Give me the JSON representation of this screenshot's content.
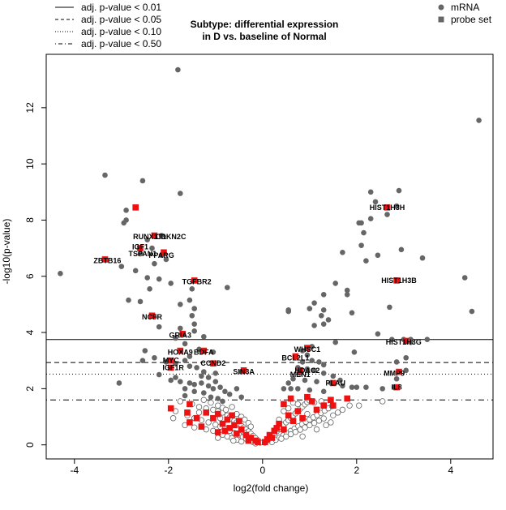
{
  "chart_data": {
    "type": "scatter",
    "title_line1": "Subtype: differential expression",
    "title_line2": "in D vs. baseline of Normal",
    "xlabel": "log2(fold change)",
    "ylabel": "-log10(p-value)",
    "xlim": [
      -4.6,
      4.9
    ],
    "ylim": [
      -0.5,
      13.9
    ],
    "x_ticks": [
      -4,
      -2,
      0,
      2,
      4
    ],
    "y_ticks": [
      0,
      2,
      4,
      6,
      8,
      10,
      12
    ],
    "grid": false,
    "threshold_legend": {
      "position": "top-left",
      "entries": [
        {
          "label": "adj. p-value < 0.01",
          "line_style": "solid",
          "y_value": 3.75
        },
        {
          "label": "adj. p-value < 0.05",
          "line_style": "dashed",
          "y_value": 2.93
        },
        {
          "label": "adj. p-value < 0.10",
          "line_style": "dotted",
          "y_value": 2.52
        },
        {
          "label": "adj. p-value < 0.50",
          "line_style": "dotdash",
          "y_value": 1.6
        }
      ]
    },
    "marker_legend": {
      "position": "top-right",
      "entries": [
        {
          "label": "mRNA",
          "marker": "circle",
          "color": "#666666"
        },
        {
          "label": "probe set",
          "marker": "square",
          "color": "#666666"
        }
      ]
    },
    "colors": {
      "significant_mrna": "#666666",
      "nonsignificant_mrna_stroke": "#666666",
      "probe_set": "#ee1111"
    },
    "significant_mrna_points": [
      [
        -1.8,
        13.35
      ],
      [
        -3.35,
        9.6
      ],
      [
        -2.55,
        9.4
      ],
      [
        -1.75,
        8.95
      ],
      [
        -2.9,
        8.35
      ],
      [
        -2.9,
        8.0
      ],
      [
        -2.95,
        7.9
      ],
      [
        -2.15,
        7.45
      ],
      [
        -2.45,
        7.3
      ],
      [
        -2.35,
        7.0
      ],
      [
        -2.6,
        6.8
      ],
      [
        -2.15,
        6.75
      ],
      [
        -2.05,
        6.6
      ],
      [
        -2.3,
        6.45
      ],
      [
        -4.3,
        6.1
      ],
      [
        -3.0,
        6.35
      ],
      [
        -2.7,
        6.2
      ],
      [
        -2.45,
        5.95
      ],
      [
        -2.2,
        5.9
      ],
      [
        -1.95,
        5.75
      ],
      [
        -2.85,
        5.15
      ],
      [
        -2.6,
        5.1
      ],
      [
        -2.4,
        5.55
      ],
      [
        -1.5,
        5.55
      ],
      [
        -0.75,
        5.6
      ],
      [
        -1.55,
        5.15
      ],
      [
        -1.75,
        5.0
      ],
      [
        -2.3,
        4.55
      ],
      [
        -1.45,
        4.85
      ],
      [
        -1.5,
        4.6
      ],
      [
        -1.45,
        4.3
      ],
      [
        -2.2,
        4.2
      ],
      [
        -1.75,
        4.15
      ],
      [
        -1.45,
        4.05
      ],
      [
        -1.85,
        3.8
      ],
      [
        -1.65,
        3.6
      ],
      [
        -1.25,
        3.85
      ],
      [
        -1.35,
        3.4
      ],
      [
        -1.05,
        3.3
      ],
      [
        -1.55,
        3.15
      ],
      [
        -1.65,
        3.0
      ],
      [
        -2.05,
        2.95
      ],
      [
        -2.55,
        3.0
      ],
      [
        -1.85,
        2.9
      ],
      [
        -1.55,
        2.8
      ],
      [
        -1.4,
        2.75
      ],
      [
        -1.25,
        2.6
      ],
      [
        -1.0,
        2.55
      ],
      [
        -1.15,
        2.4
      ],
      [
        -1.85,
        2.4
      ],
      [
        -2.2,
        2.5
      ],
      [
        -1.95,
        2.3
      ],
      [
        -1.75,
        2.25
      ],
      [
        -1.55,
        2.2
      ],
      [
        -1.45,
        2.15
      ],
      [
        -1.3,
        2.2
      ],
      [
        -1.15,
        2.1
      ],
      [
        -1.05,
        2.0
      ],
      [
        -0.9,
        2.05
      ],
      [
        -0.8,
        1.9
      ],
      [
        -0.7,
        1.8
      ],
      [
        -0.55,
        2.0
      ],
      [
        -0.45,
        1.7
      ],
      [
        -1.65,
        2.0
      ],
      [
        -1.45,
        1.9
      ],
      [
        -1.25,
        1.85
      ],
      [
        -1.1,
        1.7
      ],
      [
        -0.95,
        1.65
      ],
      [
        -0.85,
        1.55
      ],
      [
        -2.5,
        3.35
      ],
      [
        -2.3,
        3.1
      ],
      [
        -0.45,
        2.6
      ],
      [
        -3.05,
        2.2
      ],
      [
        -1.65,
        1.75
      ],
      [
        -1.3,
        2.45
      ],
      [
        -1.0,
        2.25
      ],
      [
        4.6,
        11.55
      ],
      [
        2.3,
        9.0
      ],
      [
        2.9,
        9.05
      ],
      [
        2.4,
        8.65
      ],
      [
        2.85,
        8.5
      ],
      [
        2.65,
        8.2
      ],
      [
        2.3,
        8.05
      ],
      [
        2.05,
        7.9
      ],
      [
        2.1,
        7.9
      ],
      [
        2.15,
        7.55
      ],
      [
        2.1,
        7.1
      ],
      [
        1.7,
        6.85
      ],
      [
        2.2,
        6.55
      ],
      [
        2.45,
        6.75
      ],
      [
        2.95,
        6.95
      ],
      [
        3.4,
        6.65
      ],
      [
        4.3,
        5.95
      ],
      [
        1.3,
        5.35
      ],
      [
        1.1,
        5.05
      ],
      [
        1.0,
        4.85
      ],
      [
        1.3,
        4.8
      ],
      [
        1.25,
        4.6
      ],
      [
        1.4,
        4.45
      ],
      [
        1.1,
        4.25
      ],
      [
        0.55,
        4.8
      ],
      [
        0.55,
        4.75
      ],
      [
        1.55,
        5.75
      ],
      [
        1.8,
        5.5
      ],
      [
        1.8,
        5.35
      ],
      [
        1.9,
        4.7
      ],
      [
        2.7,
        4.9
      ],
      [
        4.45,
        4.75
      ],
      [
        1.3,
        4.3
      ],
      [
        1.55,
        3.65
      ],
      [
        1.95,
        3.3
      ],
      [
        2.45,
        3.95
      ],
      [
        2.75,
        3.75
      ],
      [
        3.0,
        3.75
      ],
      [
        3.15,
        3.75
      ],
      [
        3.5,
        3.75
      ],
      [
        3.15,
        3.65
      ],
      [
        1.05,
        3.5
      ],
      [
        0.85,
        3.35
      ],
      [
        0.95,
        3.2
      ],
      [
        1.05,
        3.0
      ],
      [
        1.2,
        2.95
      ],
      [
        1.3,
        2.85
      ],
      [
        0.85,
        2.95
      ],
      [
        0.75,
        2.75
      ],
      [
        0.95,
        2.7
      ],
      [
        1.1,
        2.65
      ],
      [
        1.3,
        2.55
      ],
      [
        1.5,
        2.45
      ],
      [
        0.8,
        2.55
      ],
      [
        0.65,
        2.35
      ],
      [
        0.9,
        2.3
      ],
      [
        1.15,
        2.25
      ],
      [
        1.45,
        2.2
      ],
      [
        1.7,
        2.1
      ],
      [
        0.6,
        2.0
      ],
      [
        0.75,
        2.0
      ],
      [
        1.0,
        1.95
      ],
      [
        1.3,
        1.9
      ],
      [
        1.65,
        2.3
      ],
      [
        1.9,
        2.05
      ],
      [
        2.0,
        2.05
      ],
      [
        2.2,
        2.05
      ],
      [
        2.55,
        2.0
      ],
      [
        2.8,
        2.05
      ],
      [
        3.05,
        3.1
      ],
      [
        2.85,
        2.95
      ],
      [
        3.05,
        2.65
      ],
      [
        2.85,
        2.35
      ],
      [
        0.55,
        2.2
      ],
      [
        0.45,
        2.0
      ]
    ],
    "nonsignificant_mrna_points": [
      [
        -1.75,
        1.55
      ],
      [
        -1.5,
        1.45
      ],
      [
        -1.35,
        1.35
      ],
      [
        -1.2,
        1.3
      ],
      [
        -1.05,
        1.25
      ],
      [
        -0.95,
        1.2
      ],
      [
        -0.85,
        1.15
      ],
      [
        -0.75,
        1.05
      ],
      [
        -0.7,
        0.98
      ],
      [
        -0.65,
        0.92
      ],
      [
        -0.6,
        0.86
      ],
      [
        -0.55,
        0.8
      ],
      [
        -0.5,
        0.74
      ],
      [
        -0.45,
        0.68
      ],
      [
        -0.4,
        0.62
      ],
      [
        -0.35,
        0.55
      ],
      [
        -0.3,
        0.48
      ],
      [
        -0.25,
        0.4
      ],
      [
        -0.2,
        0.32
      ],
      [
        -0.15,
        0.24
      ],
      [
        -0.1,
        0.16
      ],
      [
        -0.05,
        0.08
      ],
      [
        -1.6,
        1.05
      ],
      [
        -1.45,
        0.95
      ],
      [
        -1.3,
        0.88
      ],
      [
        -1.15,
        0.8
      ],
      [
        -1.0,
        0.72
      ],
      [
        -0.9,
        0.65
      ],
      [
        -0.8,
        0.58
      ],
      [
        -0.7,
        0.5
      ],
      [
        -0.6,
        0.42
      ],
      [
        -0.5,
        0.35
      ],
      [
        -0.42,
        0.28
      ],
      [
        -0.35,
        0.22
      ],
      [
        -0.28,
        0.16
      ],
      [
        -0.2,
        0.1
      ],
      [
        -1.2,
        0.55
      ],
      [
        -1.05,
        0.5
      ],
      [
        -0.95,
        0.42
      ],
      [
        -0.85,
        0.36
      ],
      [
        -0.75,
        0.3
      ],
      [
        -0.65,
        0.24
      ],
      [
        -0.55,
        0.18
      ],
      [
        -0.45,
        0.12
      ],
      [
        -1.65,
        0.7
      ],
      [
        -1.45,
        0.62
      ],
      [
        -1.9,
        0.95
      ],
      [
        -1.85,
        1.2
      ],
      [
        -1.25,
        1.6
      ],
      [
        -1.1,
        1.5
      ],
      [
        -0.95,
        1.4
      ],
      [
        -0.85,
        1.32
      ],
      [
        -0.78,
        1.25
      ],
      [
        -0.55,
        1.1
      ],
      [
        -0.45,
        1.0
      ],
      [
        -0.38,
        0.9
      ],
      [
        -0.3,
        0.78
      ],
      [
        -0.25,
        0.65
      ],
      [
        -0.65,
        1.35
      ],
      [
        -0.9,
        0.95
      ],
      [
        -1.35,
        1.15
      ],
      [
        -0.62,
        0.15
      ],
      [
        -0.38,
        0.42
      ],
      [
        -0.15,
        0.05
      ],
      [
        -0.95,
        0.25
      ],
      [
        0.05,
        0.08
      ],
      [
        0.1,
        0.16
      ],
      [
        0.15,
        0.24
      ],
      [
        0.2,
        0.32
      ],
      [
        0.25,
        0.4
      ],
      [
        0.3,
        0.48
      ],
      [
        0.35,
        0.56
      ],
      [
        0.4,
        0.64
      ],
      [
        0.45,
        0.72
      ],
      [
        0.5,
        0.8
      ],
      [
        0.55,
        0.88
      ],
      [
        0.6,
        0.96
      ],
      [
        0.65,
        1.04
      ],
      [
        0.7,
        1.12
      ],
      [
        0.75,
        1.2
      ],
      [
        0.8,
        1.28
      ],
      [
        0.85,
        1.36
      ],
      [
        0.9,
        1.44
      ],
      [
        0.95,
        1.52
      ],
      [
        1.0,
        1.58
      ],
      [
        0.2,
        0.1
      ],
      [
        0.28,
        0.18
      ],
      [
        0.36,
        0.26
      ],
      [
        0.44,
        0.34
      ],
      [
        0.52,
        0.42
      ],
      [
        0.6,
        0.5
      ],
      [
        0.68,
        0.58
      ],
      [
        0.76,
        0.66
      ],
      [
        0.84,
        0.74
      ],
      [
        0.92,
        0.82
      ],
      [
        1.0,
        0.9
      ],
      [
        1.08,
        0.98
      ],
      [
        1.16,
        1.06
      ],
      [
        1.24,
        1.14
      ],
      [
        1.32,
        1.22
      ],
      [
        1.4,
        1.3
      ],
      [
        1.48,
        1.38
      ],
      [
        0.4,
        0.22
      ],
      [
        0.5,
        0.3
      ],
      [
        0.6,
        0.38
      ],
      [
        0.7,
        0.46
      ],
      [
        0.8,
        0.54
      ],
      [
        0.9,
        0.62
      ],
      [
        1.0,
        0.7
      ],
      [
        1.1,
        0.78
      ],
      [
        1.2,
        0.86
      ],
      [
        1.3,
        0.94
      ],
      [
        1.5,
        1.05
      ],
      [
        1.6,
        1.15
      ],
      [
        1.7,
        1.25
      ],
      [
        1.85,
        1.4
      ],
      [
        0.65,
        1.5
      ],
      [
        0.75,
        1.45
      ],
      [
        1.1,
        1.5
      ],
      [
        1.25,
        1.55
      ],
      [
        0.45,
        1.2
      ],
      [
        0.55,
        1.3
      ],
      [
        1.35,
        0.7
      ],
      [
        1.45,
        0.8
      ],
      [
        2.05,
        1.4
      ],
      [
        2.55,
        1.55
      ],
      [
        1.15,
        0.55
      ],
      [
        0.85,
        0.3
      ],
      [
        0.35,
        0.9
      ],
      [
        0.95,
        1.1
      ]
    ],
    "probe_set_points": [
      [
        -2.7,
        8.45
      ],
      [
        -2.3,
        7.45
      ],
      [
        -2.6,
        7.0
      ],
      [
        -2.1,
        6.85
      ],
      [
        -3.35,
        6.6
      ],
      [
        -1.45,
        5.85
      ],
      [
        -2.35,
        4.6
      ],
      [
        -1.7,
        3.95
      ],
      [
        -1.75,
        3.35
      ],
      [
        -1.25,
        3.35
      ],
      [
        -1.95,
        3.0
      ],
      [
        -1.05,
        2.9
      ],
      [
        -1.95,
        2.75
      ],
      [
        -0.4,
        2.65
      ],
      [
        -1.55,
        1.45
      ],
      [
        -1.95,
        1.3
      ],
      [
        -1.6,
        1.15
      ],
      [
        -1.2,
        1.15
      ],
      [
        -0.95,
        1.1
      ],
      [
        -0.65,
        1.05
      ],
      [
        -1.05,
        0.95
      ],
      [
        -0.75,
        0.9
      ],
      [
        -1.4,
        0.95
      ],
      [
        -0.5,
        0.85
      ],
      [
        -0.85,
        0.75
      ],
      [
        -0.6,
        0.7
      ],
      [
        -1.55,
        0.8
      ],
      [
        -1.3,
        0.65
      ],
      [
        -0.7,
        0.6
      ],
      [
        -0.45,
        0.55
      ],
      [
        -0.95,
        0.45
      ],
      [
        -0.55,
        0.4
      ],
      [
        -0.35,
        0.35
      ],
      [
        -0.25,
        0.25
      ],
      [
        -0.15,
        0.15
      ],
      [
        -0.1,
        0.1
      ],
      [
        -0.8,
        0.5
      ],
      [
        -0.3,
        0.15
      ],
      [
        2.65,
        8.45
      ],
      [
        2.85,
        5.85
      ],
      [
        3.05,
        3.7
      ],
      [
        0.95,
        3.45
      ],
      [
        0.7,
        3.15
      ],
      [
        0.8,
        2.65
      ],
      [
        2.9,
        2.6
      ],
      [
        2.85,
        2.05
      ],
      [
        1.5,
        2.2
      ],
      [
        0.6,
        1.65
      ],
      [
        0.95,
        1.7
      ],
      [
        1.45,
        1.6
      ],
      [
        1.8,
        1.65
      ],
      [
        1.5,
        1.4
      ],
      [
        1.05,
        1.55
      ],
      [
        1.3,
        1.4
      ],
      [
        0.45,
        1.45
      ],
      [
        0.75,
        1.2
      ],
      [
        0.55,
        1.05
      ],
      [
        0.35,
        0.75
      ],
      [
        0.65,
        0.85
      ],
      [
        0.85,
        0.95
      ],
      [
        0.15,
        0.35
      ],
      [
        0.25,
        0.5
      ],
      [
        0.05,
        0.1
      ],
      [
        0.1,
        0.2
      ],
      [
        0.3,
        0.6
      ],
      [
        0.45,
        0.55
      ],
      [
        1.15,
        1.25
      ],
      [
        0.2,
        0.25
      ]
    ],
    "gene_labels": [
      {
        "text": "HIST1H3H",
        "x": 2.65,
        "y": 8.45
      },
      {
        "text": "RUNX1T1",
        "x": -2.4,
        "y": 7.4
      },
      {
        "text": "CDKN2C",
        "x": -1.95,
        "y": 7.4
      },
      {
        "text": "IGF1",
        "x": -2.6,
        "y": 7.05
      },
      {
        "text": "TSPAN1",
        "x": -2.55,
        "y": 6.8
      },
      {
        "text": "PPARG",
        "x": -2.15,
        "y": 6.75
      },
      {
        "text": "ZBTB16",
        "x": -3.3,
        "y": 6.55
      },
      {
        "text": "HIST1H3B",
        "x": 2.9,
        "y": 5.85
      },
      {
        "text": "TGFBR2",
        "x": -1.4,
        "y": 5.8
      },
      {
        "text": "NCFR",
        "x": -2.35,
        "y": 4.55
      },
      {
        "text": "GRIA3",
        "x": -1.75,
        "y": 3.9
      },
      {
        "text": "HIST1H3G",
        "x": 3.0,
        "y": 3.65
      },
      {
        "text": "WHSC1",
        "x": 0.95,
        "y": 3.4
      },
      {
        "text": "HOXA9",
        "x": -1.75,
        "y": 3.3
      },
      {
        "text": "BDFA",
        "x": -1.25,
        "y": 3.3
      },
      {
        "text": "BCL2L1",
        "x": 0.7,
        "y": 3.1
      },
      {
        "text": "MYC",
        "x": -1.95,
        "y": 3.0
      },
      {
        "text": "CCND2",
        "x": -1.05,
        "y": 2.9
      },
      {
        "text": "IGF1R",
        "x": -1.9,
        "y": 2.75
      },
      {
        "text": "HDAC2",
        "x": 0.95,
        "y": 2.65
      },
      {
        "text": "SIN3A",
        "x": -0.4,
        "y": 2.6
      },
      {
        "text": "MMP9",
        "x": 2.8,
        "y": 2.55
      },
      {
        "text": "MEN1",
        "x": 0.8,
        "y": 2.5
      },
      {
        "text": "PLAU",
        "x": 1.55,
        "y": 2.2
      },
      {
        "text": "IL8",
        "x": 2.85,
        "y": 2.05
      }
    ]
  }
}
